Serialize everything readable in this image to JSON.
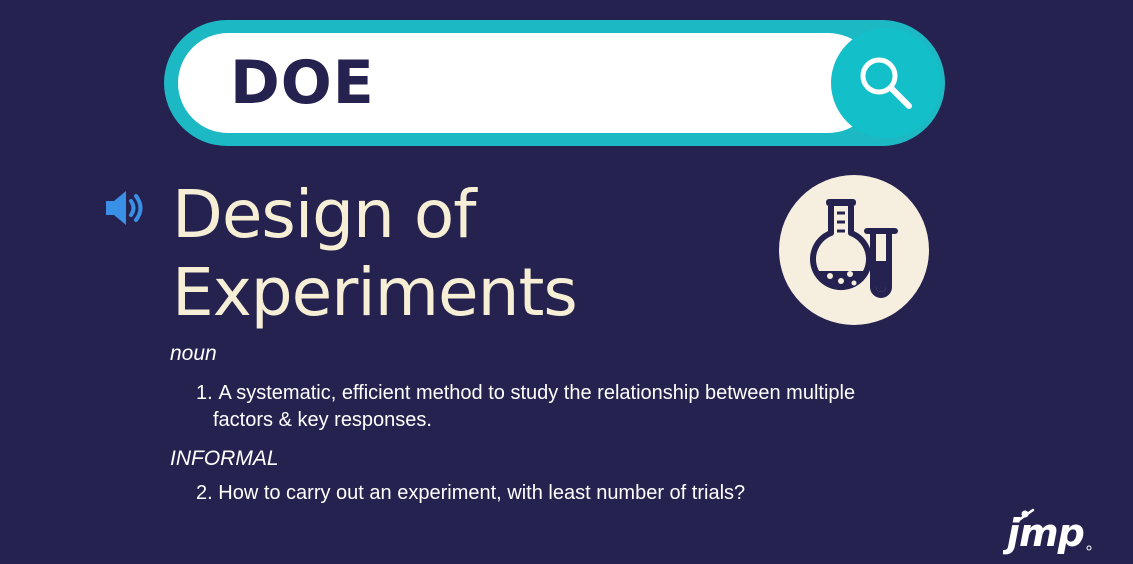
{
  "search": {
    "query": "DOE",
    "button_icon": "search-icon"
  },
  "term": {
    "line1": "Design of",
    "line2": "Experiments",
    "audio_icon": "speaker-icon",
    "illustration_icon": "flask-icon"
  },
  "entries": [
    {
      "part_of_speech": "noun",
      "number": "1.",
      "text_line1": "A systematic, efficient method to study the relationship between  multiple",
      "text_line2": "factors & key responses."
    },
    {
      "part_of_speech": "INFORMAL",
      "number": "2.",
      "text": "How to carry out an experiment, with least number of trials?"
    }
  ],
  "logo": {
    "text": "jmp"
  },
  "colors": {
    "background": "#25224f",
    "accent": "#1cb8c4",
    "title": "#f6efd5"
  }
}
